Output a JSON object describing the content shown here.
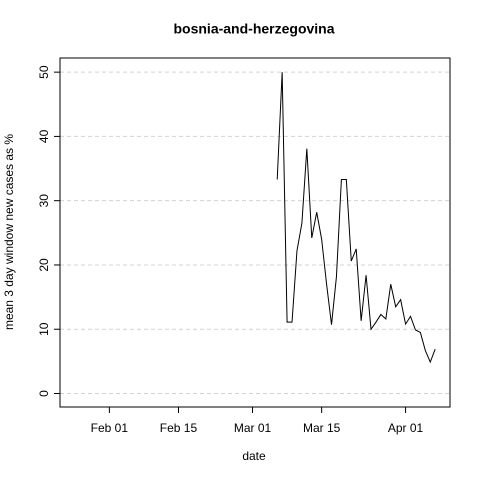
{
  "chart_data": {
    "type": "line",
    "title": "bosnia-and-herzegovina",
    "xlabel": "date",
    "ylabel": "mean  3  day window new cases as %",
    "x": [
      "Mar 06",
      "Mar 07",
      "Mar 08",
      "Mar 09",
      "Mar 10",
      "Mar 11",
      "Mar 12",
      "Mar 13",
      "Mar 14",
      "Mar 15",
      "Mar 16",
      "Mar 17",
      "Mar 18",
      "Mar 19",
      "Mar 20",
      "Mar 21",
      "Mar 22",
      "Mar 23",
      "Mar 24",
      "Mar 25",
      "Mar 26",
      "Mar 27",
      "Mar 28",
      "Mar 29",
      "Mar 30",
      "Mar 31",
      "Apr 01",
      "Apr 02",
      "Apr 03",
      "Apr 04",
      "Apr 05",
      "Apr 06",
      "Apr 07"
    ],
    "series": [
      {
        "color": "#000000",
        "values": [
          33.3,
          50,
          11.1,
          11.1,
          22.2,
          26.5,
          38.1,
          24.2,
          28.2,
          24,
          17,
          10.7,
          18.2,
          33.3,
          33.3,
          20.6,
          22.5,
          11.3,
          18.4,
          10,
          11.1,
          12.3,
          11.6,
          17,
          13.5,
          14.6,
          10.8,
          12,
          9.9,
          9.5,
          6.7,
          4.9,
          6.9
        ]
      }
    ],
    "xlim": [
      "Jan 22",
      "Apr 10"
    ],
    "xticks": [
      "Feb 01",
      "Feb 15",
      "Mar 01",
      "Mar 15",
      "Apr 01"
    ],
    "ylim": [
      -2.1,
      52.2
    ],
    "yticks": [
      0,
      10,
      20,
      30,
      40,
      50
    ],
    "grid": true
  }
}
